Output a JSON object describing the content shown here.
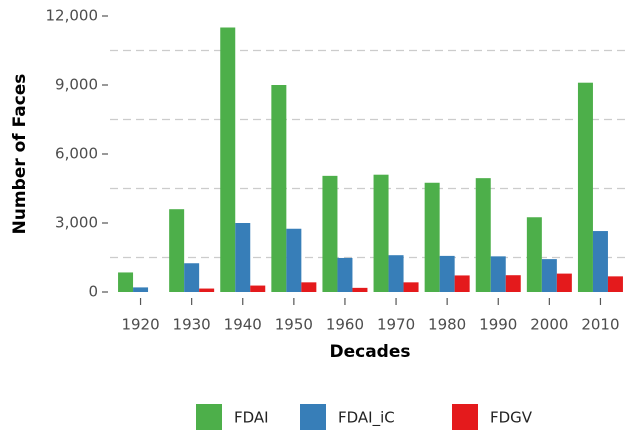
{
  "chart_data": {
    "type": "bar",
    "x_label": "Decades",
    "y_label": "Number of Faces",
    "categories": [
      "1920",
      "1930",
      "1940",
      "1950",
      "1960",
      "1970",
      "1980",
      "1990",
      "2000",
      "2010"
    ],
    "series": [
      {
        "name": "FDAI",
        "color": "#4daf4a",
        "values": [
          850,
          3600,
          11500,
          9000,
          5050,
          5100,
          4750,
          4950,
          3250,
          9100
        ]
      },
      {
        "name": "FDAI_iC",
        "color": "#377eb8",
        "values": [
          200,
          1250,
          3000,
          2750,
          1480,
          1600,
          1570,
          1550,
          1430,
          2650
        ]
      },
      {
        "name": "FDGV",
        "color": "#e41a1c",
        "values": [
          0,
          150,
          280,
          420,
          180,
          420,
          720,
          730,
          800,
          680
        ]
      }
    ],
    "ylim": [
      0,
      12000
    ],
    "yticks": [
      0,
      {
        "value": 3000,
        "label": "3,000"
      },
      {
        "value": 6000,
        "label": "6,000"
      },
      {
        "value": 9000,
        "label": "9,000"
      },
      {
        "value": 12000,
        "label": "12,000"
      }
    ],
    "grid": true,
    "legend": "bottom"
  }
}
